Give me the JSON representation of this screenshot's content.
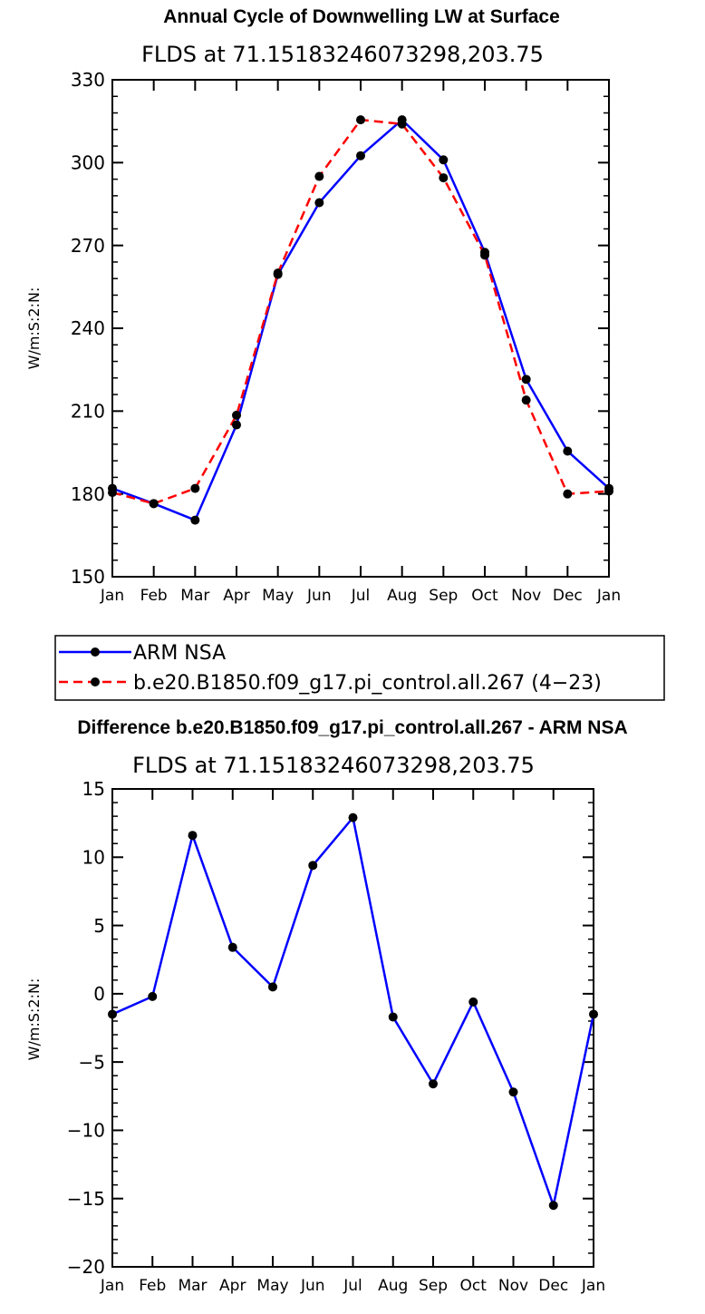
{
  "figure": {
    "months": [
      "Jan",
      "Feb",
      "Mar",
      "Apr",
      "May",
      "Jun",
      "Jul",
      "Aug",
      "Sep",
      "Oct",
      "Nov",
      "Dec",
      "Jan"
    ]
  },
  "chart_data": [
    {
      "type": "line",
      "title": "Annual Cycle of Downwelling LW at Surface",
      "subtitle": "FLDS at 71.15183246073298,203.75",
      "xlabel": "",
      "ylabel": "W/m:S:2:N:",
      "ylim": [
        150,
        330
      ],
      "yticks": [
        150,
        180,
        210,
        240,
        270,
        300,
        330
      ],
      "yminor_step": 6,
      "categories": [
        "Jan",
        "Feb",
        "Mar",
        "Apr",
        "May",
        "Jun",
        "Jul",
        "Aug",
        "Sep",
        "Oct",
        "Nov",
        "Dec",
        "Jan"
      ],
      "legend_position": "below",
      "series": [
        {
          "name": "ARM NSA",
          "color": "#0000ff",
          "dash": "solid",
          "marker": "circle",
          "values": [
            182.0,
            176.5,
            170.5,
            205.0,
            259.5,
            285.5,
            302.5,
            315.5,
            301.0,
            267.5,
            221.5,
            195.5,
            182.0
          ]
        },
        {
          "name": "b.e20.B1850.f09_g17.pi_control.all.267 (4−23)",
          "color": "#ff0000",
          "dash": "dashed",
          "marker": "circle",
          "values": [
            180.5,
            176.5,
            182.0,
            208.5,
            260.0,
            295.0,
            315.5,
            314.0,
            294.5,
            266.5,
            214.0,
            180.0,
            181.0
          ]
        }
      ]
    },
    {
      "type": "line",
      "title": "Difference b.e20.B1850.f09_g17.pi_control.all.267 - ARM NSA",
      "subtitle": "FLDS at 71.15183246073298,203.75",
      "xlabel": "",
      "ylabel": "W/m:S:2:N:",
      "ylim": [
        -20,
        15
      ],
      "yticks": [
        -20,
        -15,
        -10,
        -5,
        0,
        5,
        10,
        15
      ],
      "yminor_step": 1,
      "categories": [
        "Jan",
        "Feb",
        "Mar",
        "Apr",
        "May",
        "Jun",
        "Jul",
        "Aug",
        "Sep",
        "Oct",
        "Nov",
        "Dec",
        "Jan"
      ],
      "series": [
        {
          "name": "Difference",
          "color": "#0000ff",
          "dash": "solid",
          "marker": "circle",
          "values": [
            -1.5,
            -0.2,
            11.6,
            3.4,
            0.5,
            9.4,
            12.9,
            -1.7,
            -6.6,
            -0.6,
            -7.2,
            -15.5,
            -1.5
          ]
        }
      ]
    }
  ]
}
